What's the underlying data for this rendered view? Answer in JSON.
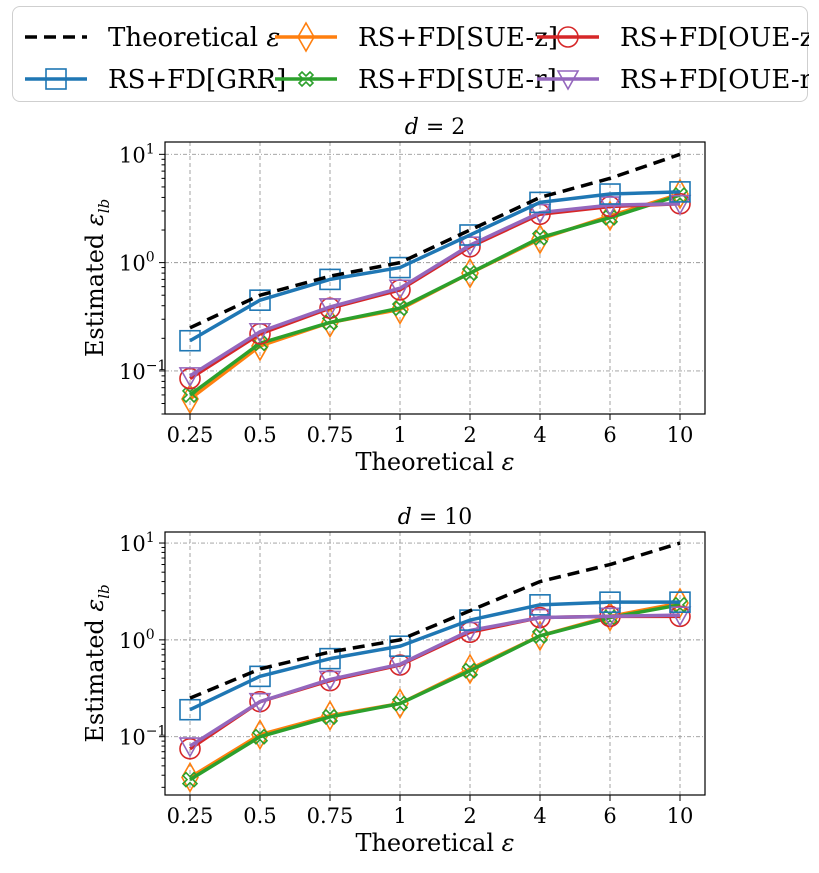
{
  "legend": {
    "entries": [
      {
        "key": "theo",
        "label": "Theoretical ε"
      },
      {
        "key": "grr",
        "label": "RS+FD[GRR]"
      },
      {
        "key": "suez",
        "label": "RS+FD[SUE-z]"
      },
      {
        "key": "suer",
        "label": "RS+FD[SUE-r]"
      },
      {
        "key": "ouez",
        "label": "RS+FD[OUE-z]"
      },
      {
        "key": "ouer",
        "label": "RS+FD[OUE-r]"
      }
    ]
  },
  "colors": {
    "theo": "#000000",
    "grr": "#1f77b4",
    "suez": "#ff7f0e",
    "suer": "#2ca02c",
    "ouez": "#d62728",
    "ouer": "#9467bd"
  },
  "chart_data": [
    {
      "type": "line",
      "title": "d = 2",
      "xlabel": "Theoretical ε",
      "ylabel": "Estimated ε_lb",
      "yscale": "log",
      "ylim": [
        0.04,
        13
      ],
      "categories": [
        "0.25",
        "0.5",
        "0.75",
        "1",
        "2",
        "4",
        "6",
        "10"
      ],
      "y_ticks": [
        {
          "value": 0.1,
          "label": "10^-1"
        },
        {
          "value": 1,
          "label": "10^0"
        },
        {
          "value": 10,
          "label": "10^1"
        }
      ],
      "series": [
        {
          "key": "theo",
          "name": "Theoretical ε",
          "values": [
            0.25,
            0.5,
            0.75,
            1,
            2,
            4,
            6,
            10
          ]
        },
        {
          "key": "grr",
          "name": "RS+FD[GRR]",
          "values": [
            0.19,
            0.45,
            0.7,
            0.9,
            1.8,
            3.6,
            4.3,
            4.5
          ]
        },
        {
          "key": "suez",
          "name": "RS+FD[SUE-z]",
          "values": [
            0.055,
            0.17,
            0.28,
            0.37,
            0.8,
            1.65,
            2.7,
            4.3
          ]
        },
        {
          "key": "suer",
          "name": "RS+FD[SUE-r]",
          "values": [
            0.06,
            0.18,
            0.28,
            0.38,
            0.8,
            1.7,
            2.6,
            4.2
          ]
        },
        {
          "key": "ouez",
          "name": "RS+FD[OUE-z]",
          "values": [
            0.085,
            0.22,
            0.38,
            0.56,
            1.4,
            2.8,
            3.3,
            3.5
          ]
        },
        {
          "key": "ouer",
          "name": "RS+FD[OUE-r]",
          "values": [
            0.09,
            0.23,
            0.39,
            0.58,
            1.45,
            2.9,
            3.4,
            3.5
          ]
        }
      ]
    },
    {
      "type": "line",
      "title": "d = 10",
      "xlabel": "Theoretical ε",
      "ylabel": "Estimated ε_lb",
      "yscale": "log",
      "ylim": [
        0.025,
        13
      ],
      "categories": [
        "0.25",
        "0.5",
        "0.75",
        "1",
        "2",
        "4",
        "6",
        "10"
      ],
      "y_ticks": [
        {
          "value": 0.1,
          "label": "10^-1"
        },
        {
          "value": 1,
          "label": "10^0"
        },
        {
          "value": 10,
          "label": "10^1"
        }
      ],
      "series": [
        {
          "key": "theo",
          "name": "Theoretical ε",
          "values": [
            0.25,
            0.5,
            0.75,
            1,
            2,
            4,
            6,
            10
          ]
        },
        {
          "key": "grr",
          "name": "RS+FD[GRR]",
          "values": [
            0.19,
            0.42,
            0.64,
            0.86,
            1.6,
            2.3,
            2.45,
            2.45
          ]
        },
        {
          "key": "suez",
          "name": "RS+FD[SUE-z]",
          "values": [
            0.038,
            0.105,
            0.165,
            0.22,
            0.5,
            1.1,
            1.75,
            2.4
          ]
        },
        {
          "key": "suer",
          "name": "RS+FD[SUE-r]",
          "values": [
            0.036,
            0.1,
            0.16,
            0.22,
            0.48,
            1.1,
            1.7,
            2.3
          ]
        },
        {
          "key": "ouez",
          "name": "RS+FD[OUE-z]",
          "values": [
            0.075,
            0.23,
            0.38,
            0.55,
            1.2,
            1.7,
            1.75,
            1.75
          ]
        },
        {
          "key": "ouer",
          "name": "RS+FD[OUE-r]",
          "values": [
            0.08,
            0.23,
            0.39,
            0.56,
            1.25,
            1.7,
            1.75,
            1.8
          ]
        }
      ]
    }
  ]
}
